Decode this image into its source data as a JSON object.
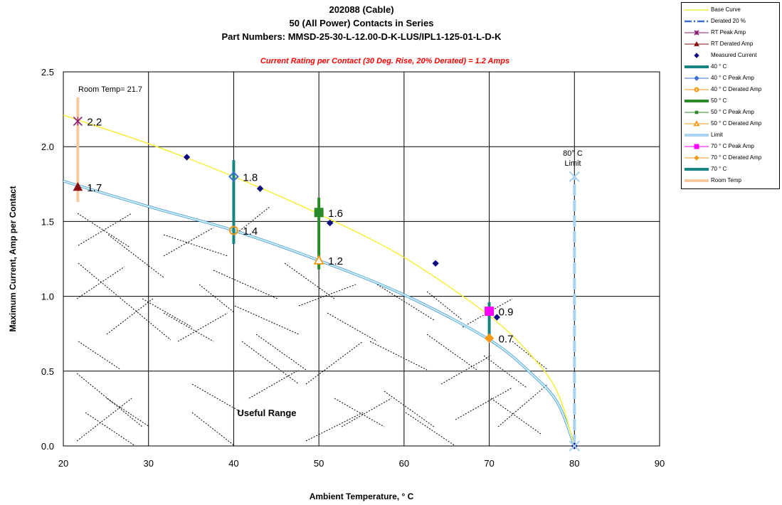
{
  "chart_data": {
    "type": "line",
    "title": "202088 (Cable)",
    "subtitle_lines": [
      "50 (All Power) Contacts in Series",
      "Part Numbers: MMSD-25-30-L-12.00-D-K-LUS/IPL1-125-01-L-D-K"
    ],
    "rating_note": "Current Rating per Contact (30 Deg. Rise, 20% Derated) = 1.2 Amps",
    "xlabel": "Ambient Temperature,  ° C",
    "ylabel": "Maximum Current, Amp per Contact",
    "xlim": [
      20,
      90
    ],
    "ylim": [
      0,
      2.5
    ],
    "xticks": [
      "20",
      "30",
      "40",
      "50",
      "60",
      "70",
      "80",
      "90"
    ],
    "yticks": [
      "0.0",
      "0.5",
      "1.0",
      "1.5",
      "2.0",
      "2.5"
    ],
    "grid": true,
    "legend_position": "top-right",
    "colors": {
      "base_curve": "#f5ef3a",
      "derated": "#9ee6ee",
      "derated_edge": "#3b6fd6",
      "measured": "#0d0d80",
      "teal": "#178481",
      "green": "#2a8a2a",
      "limit": "#a8d2f0",
      "magenta": "#ff00ff",
      "orange": "#f39a12",
      "room": "#f7c9a0",
      "rt_peak": "#8a1a7a",
      "rt_derated": "#8a0e0e",
      "annotation_red": "#ff0000"
    },
    "base_curve": {
      "name": "Base Curve",
      "x": [
        20,
        30,
        40,
        50,
        60,
        70,
        75,
        78,
        80
      ],
      "y": [
        2.21,
        2.02,
        1.8,
        1.55,
        1.26,
        0.87,
        0.6,
        0.36,
        0.0
      ]
    },
    "derated_curve": {
      "name": "Derated 20 %",
      "x": [
        20,
        30,
        40,
        50,
        60,
        70,
        75,
        78,
        80
      ],
      "y": [
        1.77,
        1.6,
        1.44,
        1.24,
        1.01,
        0.71,
        0.48,
        0.29,
        0.0
      ]
    },
    "measured_current": {
      "name": "Measured Current",
      "x": [
        34.5,
        43.1,
        51.3,
        63.7,
        70.9,
        80.0
      ],
      "y": [
        1.93,
        1.72,
        1.49,
        1.22,
        0.86,
        0.0
      ]
    },
    "vertical_bars": [
      {
        "name": "40 ° C",
        "x": 40,
        "y0": 1.35,
        "y1": 1.91,
        "color_key": "teal"
      },
      {
        "name": "50 ° C",
        "x": 50,
        "y0": 1.18,
        "y1": 1.66,
        "color_key": "green"
      },
      {
        "name": "70 ° C",
        "x": 70,
        "y0": 0.71,
        "y1": 0.96,
        "color_key": "teal"
      },
      {
        "name": "Room Temp",
        "x": 21.7,
        "y0": 1.63,
        "y1": 2.33,
        "color_key": "room"
      }
    ],
    "limit_line": {
      "name": "Limit",
      "x": 80,
      "y0": 0,
      "y1": 1.8
    },
    "limit_marker": {
      "x": 80,
      "y": 1.8,
      "label_lines": [
        "80° C",
        "Limit"
      ]
    },
    "room_temp_label": "Room Temp= 21.7",
    "useful_range_label": "Useful Range",
    "points": [
      {
        "name": "RT Peak Amp",
        "x": 21.7,
        "y": 2.17,
        "label": "2.2",
        "marker": "star",
        "color_key": "rt_peak"
      },
      {
        "name": "RT Derated Amp",
        "x": 21.7,
        "y": 1.73,
        "label": "1.7",
        "marker": "triangle",
        "color_key": "rt_derated"
      },
      {
        "name": "40 ° C Peak Amp",
        "x": 40,
        "y": 1.8,
        "label": "1.8",
        "marker": "diamond-open",
        "color_key": "derated_edge"
      },
      {
        "name": "40 ° C Derated Amp",
        "x": 40,
        "y": 1.44,
        "label": "1.4",
        "marker": "circle-open",
        "color_key": "orange"
      },
      {
        "name": "50 ° C Peak Amp",
        "x": 50,
        "y": 1.56,
        "label": "1.6",
        "marker": "square",
        "color_key": "green"
      },
      {
        "name": "50 ° C Derated Amp",
        "x": 50,
        "y": 1.24,
        "label": "1.2",
        "marker": "triangle-open",
        "color_key": "orange"
      },
      {
        "name": "70 ° C Peak Amp",
        "x": 70,
        "y": 0.9,
        "label": "0.9",
        "marker": "square",
        "color_key": "magenta"
      },
      {
        "name": "70 ° C Derated Amp",
        "x": 70,
        "y": 0.72,
        "label": "0.7",
        "marker": "diamond",
        "color_key": "orange"
      }
    ],
    "legend": [
      {
        "label": "Base Curve",
        "swatch": "line",
        "color_key": "base_curve"
      },
      {
        "label": "Derated 20 %",
        "swatch": "dashline",
        "color_key": "derated_edge"
      },
      {
        "label": "RT Peak Amp",
        "swatch": "star",
        "color_key": "rt_peak"
      },
      {
        "label": "RT Derated Amp",
        "swatch": "triangle",
        "color_key": "rt_derated"
      },
      {
        "label": "Measured Current",
        "swatch": "diamond-only",
        "color_key": "measured"
      },
      {
        "label": "40 ° C",
        "swatch": "thick",
        "color_key": "teal"
      },
      {
        "label": "40 ° C Peak Amp",
        "swatch": "diamond",
        "color_key": "derated_edge"
      },
      {
        "label": "40 ° C Derated Amp",
        "swatch": "circle-open",
        "color_key": "orange"
      },
      {
        "label": "50 ° C",
        "swatch": "thick",
        "color_key": "green"
      },
      {
        "label": "50 ° C Peak Amp",
        "swatch": "square-small",
        "color_key": "green"
      },
      {
        "label": "50 ° C Derated Amp",
        "swatch": "triangle-open",
        "color_key": "orange"
      },
      {
        "label": "Limit",
        "swatch": "thick",
        "color_key": "limit"
      },
      {
        "label": "70 ° C Peak Amp",
        "swatch": "square",
        "color_key": "magenta"
      },
      {
        "label": "70 ° C Derated Amp",
        "swatch": "diamond",
        "color_key": "orange"
      },
      {
        "label": "70 ° C",
        "swatch": "thick",
        "color_key": "teal"
      },
      {
        "label": "Room Temp",
        "swatch": "thick",
        "color_key": "room"
      }
    ]
  }
}
